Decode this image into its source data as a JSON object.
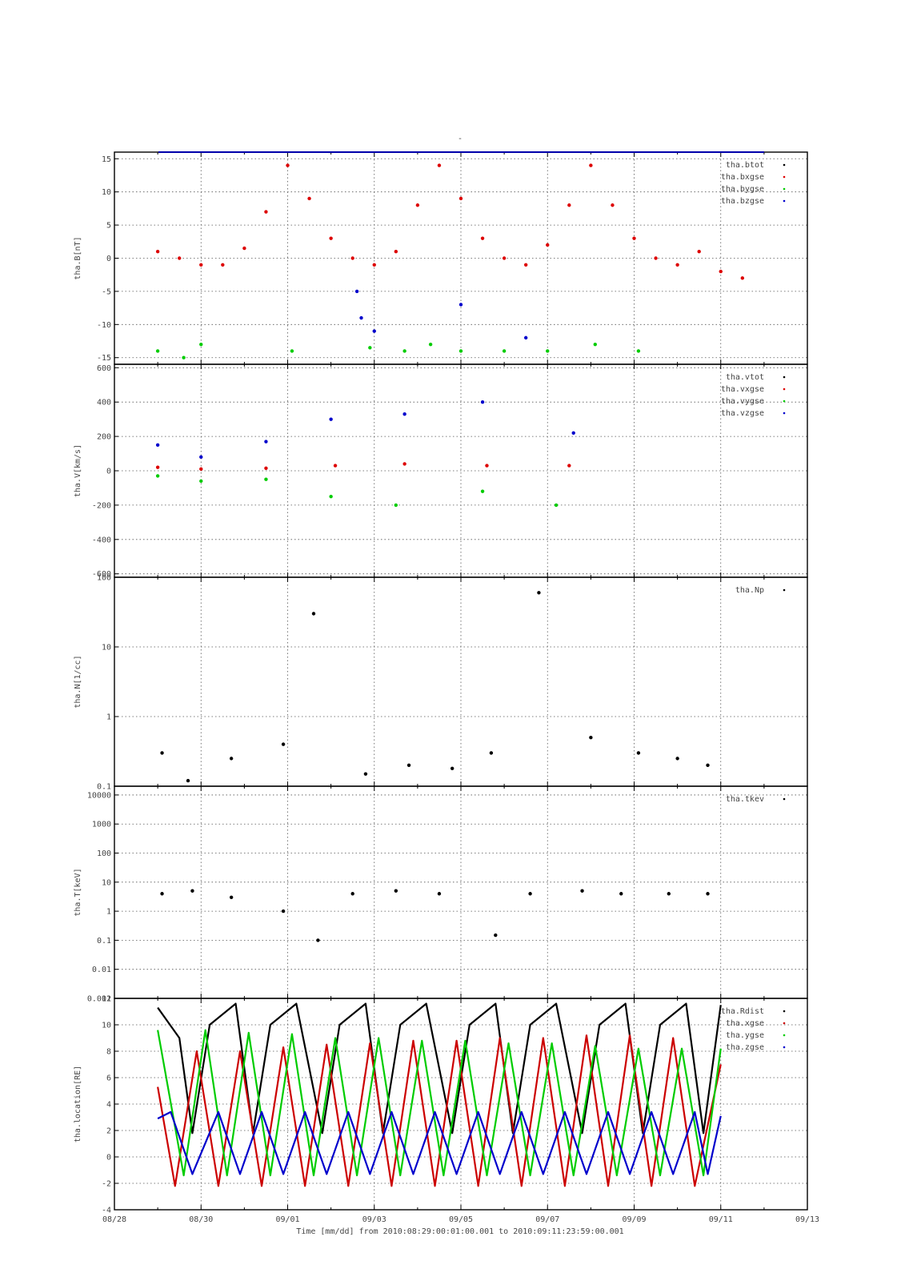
{
  "title": "-",
  "xaxis": {
    "tick_labels": [
      "08/28",
      "08/30",
      "09/01",
      "09/03",
      "09/05",
      "09/07",
      "09/09",
      "09/11",
      "09/13"
    ],
    "label": "Time [mm/dd]  from 2010:08:29:00:01:00.001  to  2010:09:11:23:59:00.001"
  },
  "chart_data": [
    {
      "type": "scatter",
      "ylabel": "tha.B[nT]",
      "ylim": [
        -16,
        16
      ],
      "yticks": [
        -15,
        -10,
        -5,
        0,
        5,
        10,
        15
      ],
      "grid": true,
      "legend_position": "top-right",
      "series": [
        {
          "name": "tha.btot",
          "color": "#000000",
          "values": []
        },
        {
          "name": "tha.bxgse",
          "color": "#dd0000",
          "values": [
            [
              1.0,
              1
            ],
            [
              1.5,
              0
            ],
            [
              2.0,
              -1
            ],
            [
              2.5,
              -1
            ],
            [
              3.0,
              1.5
            ],
            [
              3.5,
              7
            ],
            [
              4.0,
              14
            ],
            [
              4.5,
              9
            ],
            [
              5.0,
              3
            ],
            [
              5.5,
              0
            ],
            [
              6.0,
              -1
            ],
            [
              6.5,
              1
            ],
            [
              7.0,
              8
            ],
            [
              7.5,
              14
            ],
            [
              8.0,
              9
            ],
            [
              8.5,
              3
            ],
            [
              9.0,
              0
            ],
            [
              9.5,
              -1
            ],
            [
              10.0,
              2
            ],
            [
              10.5,
              8
            ],
            [
              11.0,
              14
            ],
            [
              11.5,
              8
            ],
            [
              12.0,
              3
            ],
            [
              12.5,
              0
            ],
            [
              13.0,
              -1
            ],
            [
              13.5,
              1
            ],
            [
              14.0,
              -2
            ],
            [
              14.5,
              -3
            ]
          ]
        },
        {
          "name": "tha.bygse",
          "color": "#00cc00",
          "values": [
            [
              1.0,
              -14
            ],
            [
              1.6,
              -15
            ],
            [
              2.0,
              -13
            ],
            [
              4.1,
              -14
            ],
            [
              5.9,
              -13.5
            ],
            [
              6.7,
              -14
            ],
            [
              7.3,
              -13
            ],
            [
              8.0,
              -14
            ],
            [
              9.0,
              -14
            ],
            [
              10.0,
              -14
            ],
            [
              11.1,
              -13
            ],
            [
              12.1,
              -14
            ]
          ]
        },
        {
          "name": "tha.bzgse",
          "color": "#0000cc",
          "values": [
            [
              5.6,
              -5
            ],
            [
              5.7,
              -9
            ],
            [
              6.0,
              -11
            ],
            [
              8.0,
              -7
            ],
            [
              9.5,
              -12
            ]
          ]
        }
      ]
    },
    {
      "type": "scatter",
      "ylabel": "tha.V[km/s]",
      "ylim": [
        -620,
        620
      ],
      "yticks": [
        -600,
        -400,
        -200,
        0,
        200,
        400,
        600
      ],
      "grid": true,
      "legend_position": "top-right",
      "series": [
        {
          "name": "tha.vtot",
          "color": "#000000",
          "values": []
        },
        {
          "name": "tha.vxgse",
          "color": "#dd0000",
          "values": [
            [
              1.0,
              20
            ],
            [
              2.0,
              10
            ],
            [
              3.5,
              15
            ],
            [
              5.1,
              30
            ],
            [
              6.7,
              40
            ],
            [
              8.6,
              30
            ],
            [
              10.5,
              30
            ]
          ]
        },
        {
          "name": "tha.vygse",
          "color": "#00cc00",
          "values": [
            [
              1.0,
              -30
            ],
            [
              2.0,
              -60
            ],
            [
              3.5,
              -50
            ],
            [
              5.0,
              -150
            ],
            [
              6.5,
              -200
            ],
            [
              8.5,
              -120
            ],
            [
              10.2,
              -200
            ]
          ]
        },
        {
          "name": "tha.vzgse",
          "color": "#0000cc",
          "values": [
            [
              1.0,
              150
            ],
            [
              2.0,
              80
            ],
            [
              3.5,
              170
            ],
            [
              5.0,
              300
            ],
            [
              6.7,
              330
            ],
            [
              8.5,
              400
            ],
            [
              10.6,
              220
            ]
          ]
        }
      ]
    },
    {
      "type": "scatter",
      "ylabel": "tha.N[1/cc]",
      "yscale": "log",
      "ylim": [
        0.1,
        100
      ],
      "yticks": [
        0.1,
        1,
        10,
        100
      ],
      "grid": true,
      "legend_position": "top-right",
      "series": [
        {
          "name": "tha.Np",
          "color": "#000000",
          "values": [
            [
              1.1,
              0.3
            ],
            [
              1.7,
              0.12
            ],
            [
              2.7,
              0.25
            ],
            [
              3.9,
              0.4
            ],
            [
              4.6,
              30
            ],
            [
              5.8,
              0.15
            ],
            [
              6.8,
              0.2
            ],
            [
              7.8,
              0.18
            ],
            [
              8.7,
              0.3
            ],
            [
              9.8,
              60
            ],
            [
              11.0,
              0.5
            ],
            [
              12.1,
              0.3
            ],
            [
              13.0,
              0.25
            ],
            [
              13.7,
              0.2
            ]
          ]
        }
      ]
    },
    {
      "type": "scatter",
      "ylabel": "tha.T[keV]",
      "yscale": "log",
      "ylim": [
        0.001,
        20000
      ],
      "ytick_labels": [
        "0.001",
        "0.01",
        "0.1",
        "1",
        "10",
        "100",
        "1000",
        "10000"
      ],
      "grid": true,
      "legend_position": "top-right",
      "series": [
        {
          "name": "tha.tkev",
          "color": "#000000",
          "values": [
            [
              1.1,
              4
            ],
            [
              1.8,
              5
            ],
            [
              2.7,
              3
            ],
            [
              3.9,
              1
            ],
            [
              4.7,
              0.1
            ],
            [
              5.5,
              4
            ],
            [
              6.5,
              5
            ],
            [
              7.5,
              4
            ],
            [
              8.8,
              0.15
            ],
            [
              9.6,
              4
            ],
            [
              10.8,
              5
            ],
            [
              11.7,
              4
            ],
            [
              12.8,
              4
            ],
            [
              13.7,
              4
            ]
          ]
        }
      ]
    },
    {
      "type": "line",
      "ylabel": "tha.location[RE]",
      "ylim": [
        -4,
        12
      ],
      "yticks": [
        -4,
        -2,
        0,
        2,
        4,
        6,
        8,
        10,
        12
      ],
      "grid": true,
      "legend_position": "top-right",
      "series": [
        {
          "name": "tha.Rdist",
          "color": "#000000",
          "values": [
            [
              1.0,
              11.3
            ],
            [
              1.5,
              9
            ],
            [
              1.8,
              1.8
            ],
            [
              2.2,
              10
            ],
            [
              2.8,
              11.6
            ],
            [
              3.2,
              1.8
            ],
            [
              3.6,
              10
            ],
            [
              4.2,
              11.6
            ],
            [
              4.8,
              1.8
            ],
            [
              5.2,
              10
            ],
            [
              5.8,
              11.6
            ],
            [
              6.2,
              1.8
            ],
            [
              6.6,
              10
            ],
            [
              7.2,
              11.6
            ],
            [
              7.8,
              1.8
            ],
            [
              8.2,
              10
            ],
            [
              8.8,
              11.6
            ],
            [
              9.2,
              1.8
            ],
            [
              9.6,
              10
            ],
            [
              10.2,
              11.6
            ],
            [
              10.8,
              1.8
            ],
            [
              11.2,
              10
            ],
            [
              11.8,
              11.6
            ],
            [
              12.2,
              1.8
            ],
            [
              12.6,
              10
            ],
            [
              13.2,
              11.6
            ],
            [
              13.6,
              1.8
            ],
            [
              14.0,
              11.5
            ]
          ]
        },
        {
          "name": "tha.xgse",
          "color": "#cc0000",
          "values": [
            [
              1.0,
              5.3
            ],
            [
              1.4,
              -2.2
            ],
            [
              1.9,
              8
            ],
            [
              2.4,
              -2.2
            ],
            [
              2.9,
              8
            ],
            [
              3.4,
              -2.2
            ],
            [
              3.9,
              8.3
            ],
            [
              4.4,
              -2.2
            ],
            [
              4.9,
              8.5
            ],
            [
              5.4,
              -2.2
            ],
            [
              5.9,
              8.6
            ],
            [
              6.4,
              -2.2
            ],
            [
              6.9,
              8.8
            ],
            [
              7.4,
              -2.2
            ],
            [
              7.9,
              8.8
            ],
            [
              8.4,
              -2.2
            ],
            [
              8.9,
              9
            ],
            [
              9.4,
              -2.2
            ],
            [
              9.9,
              9
            ],
            [
              10.4,
              -2.2
            ],
            [
              10.9,
              9.2
            ],
            [
              11.4,
              -2.2
            ],
            [
              11.9,
              9.2
            ],
            [
              12.4,
              -2.2
            ],
            [
              12.9,
              9
            ],
            [
              13.4,
              -2.2
            ],
            [
              14.0,
              7
            ]
          ]
        },
        {
          "name": "tha.ygse",
          "color": "#00cc00",
          "values": [
            [
              1.0,
              9.6
            ],
            [
              1.6,
              -1.4
            ],
            [
              2.1,
              9.6
            ],
            [
              2.6,
              -1.4
            ],
            [
              3.1,
              9.4
            ],
            [
              3.6,
              -1.4
            ],
            [
              4.1,
              9.3
            ],
            [
              4.6,
              -1.4
            ],
            [
              5.1,
              9
            ],
            [
              5.6,
              -1.4
            ],
            [
              6.1,
              9
            ],
            [
              6.6,
              -1.4
            ],
            [
              7.1,
              8.8
            ],
            [
              7.6,
              -1.4
            ],
            [
              8.1,
              8.8
            ],
            [
              8.6,
              -1.4
            ],
            [
              9.1,
              8.6
            ],
            [
              9.6,
              -1.4
            ],
            [
              10.1,
              8.6
            ],
            [
              10.6,
              -1.4
            ],
            [
              11.1,
              8.4
            ],
            [
              11.6,
              -1.4
            ],
            [
              12.1,
              8.2
            ],
            [
              12.6,
              -1.4
            ],
            [
              13.1,
              8.2
            ],
            [
              13.6,
              -1.4
            ],
            [
              14.0,
              8.2
            ]
          ]
        },
        {
          "name": "tha.zgse",
          "color": "#0000cc",
          "values": [
            [
              1.0,
              2.9
            ],
            [
              1.3,
              3.4
            ],
            [
              1.8,
              -1.3
            ],
            [
              2.4,
              3.4
            ],
            [
              2.9,
              -1.3
            ],
            [
              3.4,
              3.4
            ],
            [
              3.9,
              -1.3
            ],
            [
              4.4,
              3.4
            ],
            [
              4.9,
              -1.3
            ],
            [
              5.4,
              3.4
            ],
            [
              5.9,
              -1.3
            ],
            [
              6.4,
              3.4
            ],
            [
              6.9,
              -1.3
            ],
            [
              7.4,
              3.4
            ],
            [
              7.9,
              -1.3
            ],
            [
              8.4,
              3.4
            ],
            [
              8.9,
              -1.3
            ],
            [
              9.4,
              3.4
            ],
            [
              9.9,
              -1.3
            ],
            [
              10.4,
              3.4
            ],
            [
              10.9,
              -1.3
            ],
            [
              11.4,
              3.4
            ],
            [
              11.9,
              -1.3
            ],
            [
              12.4,
              3.4
            ],
            [
              12.9,
              -1.3
            ],
            [
              13.4,
              3.4
            ],
            [
              13.7,
              -1.3
            ],
            [
              14.0,
              3.1
            ]
          ]
        }
      ]
    }
  ]
}
